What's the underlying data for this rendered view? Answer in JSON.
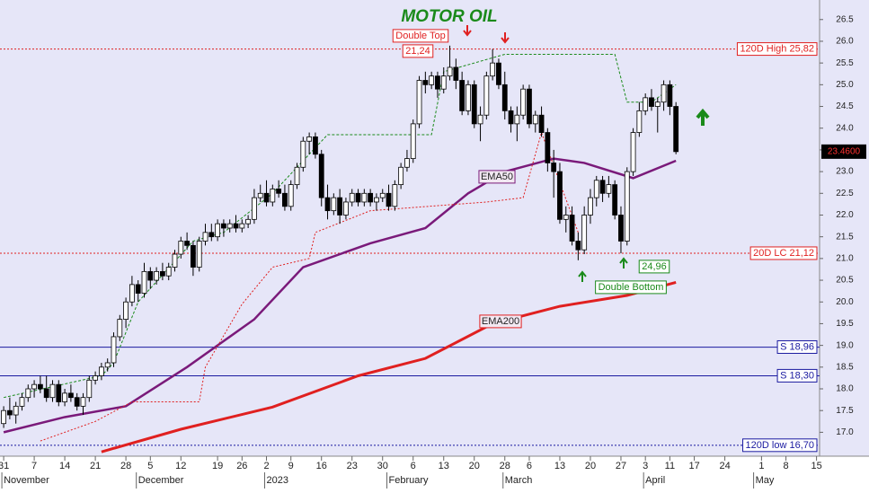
{
  "chart_data": {
    "type": "candlestick",
    "title": "MOTOR OIL",
    "xlim": [
      -0.6,
      133.5
    ],
    "ylim": [
      16.45,
      26.95
    ],
    "yticks": [
      {
        "value": 17,
        "label": "17.0"
      },
      17.5,
      {
        "value": 18,
        "label": "18.0"
      },
      18.5,
      {
        "value": 19,
        "label": "19.0"
      },
      19.5,
      {
        "value": 20,
        "label": "20.0"
      },
      20.5,
      {
        "value": 21,
        "label": "21.0"
      },
      21.5,
      {
        "value": 22,
        "label": "22.0"
      },
      22.5,
      {
        "value": 23,
        "label": "23.0"
      },
      23.5,
      {
        "value": 24,
        "label": "24.0"
      },
      24.5,
      {
        "value": 25,
        "label": "25.0"
      },
      25.5,
      {
        "value": 26,
        "label": "26.0"
      },
      26.5
    ],
    "xticks": [
      {
        "value": 0,
        "label": "31"
      },
      {
        "value": 5,
        "label": "7"
      },
      {
        "value": 10,
        "label": "14"
      },
      {
        "value": 15,
        "label": "21"
      },
      {
        "value": 20,
        "label": "28"
      },
      {
        "value": 24,
        "label": "5"
      },
      {
        "value": 29,
        "label": "12"
      },
      {
        "value": 35,
        "label": "19"
      },
      {
        "value": 39,
        "label": "26"
      },
      {
        "value": 43,
        "label": "2"
      },
      {
        "value": 47,
        "label": "9"
      },
      {
        "value": 52,
        "label": "16"
      },
      {
        "value": 57,
        "label": "23"
      },
      {
        "value": 62,
        "label": "30"
      },
      {
        "value": 67,
        "label": "6"
      },
      {
        "value": 72,
        "label": "13"
      },
      {
        "value": 77,
        "label": "20"
      },
      {
        "value": 82,
        "label": "28"
      },
      {
        "value": 86,
        "label": "6"
      },
      {
        "value": 91,
        "label": "13"
      },
      {
        "value": 96,
        "label": "20"
      },
      {
        "value": 101,
        "label": "27"
      },
      {
        "value": 105,
        "label": "3"
      },
      {
        "value": 109,
        "label": "11"
      },
      {
        "value": 113,
        "label": "17"
      },
      {
        "value": 118,
        "label": "24"
      },
      {
        "value": 124,
        "label": "1"
      },
      {
        "value": 128,
        "label": "8"
      },
      {
        "value": 133,
        "label": "15"
      }
    ],
    "months": [
      {
        "value": 0,
        "label": "November"
      },
      {
        "value": 22,
        "label": "December"
      },
      {
        "value": 43,
        "label": "2023"
      },
      {
        "value": 63,
        "label": "February"
      },
      {
        "value": 82,
        "label": "March"
      },
      {
        "value": 105,
        "label": "April"
      },
      {
        "value": 123,
        "label": "May"
      }
    ],
    "up_color": "#ffffff",
    "down_color": "#000000",
    "ohlc": [
      [
        17.2,
        17.6,
        17.1,
        17.5
      ],
      [
        17.5,
        17.8,
        17.3,
        17.4
      ],
      [
        17.4,
        17.7,
        17.2,
        17.6
      ],
      [
        17.6,
        17.9,
        17.5,
        17.8
      ],
      [
        17.8,
        18.1,
        17.7,
        18.0
      ],
      [
        18.0,
        18.2,
        17.8,
        18.1
      ],
      [
        18.1,
        18.3,
        17.9,
        18.0
      ],
      [
        18.0,
        18.3,
        17.7,
        17.8
      ],
      [
        17.8,
        18.2,
        17.7,
        18.1
      ],
      [
        18.1,
        18.2,
        17.6,
        17.7
      ],
      [
        17.7,
        18.0,
        17.6,
        17.9
      ],
      [
        17.9,
        18.1,
        17.7,
        17.8
      ],
      [
        17.8,
        17.9,
        17.5,
        17.6
      ],
      [
        17.6,
        17.9,
        17.4,
        17.8
      ],
      [
        17.8,
        18.3,
        17.7,
        18.2
      ],
      [
        18.2,
        18.4,
        18.1,
        18.3
      ],
      [
        18.3,
        18.6,
        18.2,
        18.5
      ],
      [
        18.5,
        18.7,
        18.4,
        18.6
      ],
      [
        18.6,
        19.3,
        18.5,
        19.2
      ],
      [
        19.2,
        19.7,
        19.1,
        19.6
      ],
      [
        19.6,
        20.1,
        19.4,
        20.0
      ],
      [
        20.0,
        20.6,
        19.9,
        20.4
      ],
      [
        20.4,
        20.5,
        20.0,
        20.2
      ],
      [
        20.2,
        20.9,
        20.1,
        20.7
      ],
      [
        20.7,
        20.8,
        20.3,
        20.5
      ],
      [
        20.5,
        20.8,
        20.4,
        20.7
      ],
      [
        20.7,
        20.9,
        20.5,
        20.6
      ],
      [
        20.6,
        20.9,
        20.5,
        20.8
      ],
      [
        20.8,
        21.2,
        20.7,
        21.1
      ],
      [
        21.1,
        21.5,
        21.0,
        21.4
      ],
      [
        21.4,
        21.6,
        21.2,
        21.3
      ],
      [
        21.3,
        21.4,
        20.6,
        20.8
      ],
      [
        20.8,
        21.5,
        20.7,
        21.4
      ],
      [
        21.4,
        21.8,
        21.3,
        21.6
      ],
      [
        21.6,
        21.8,
        21.4,
        21.5
      ],
      [
        21.5,
        21.9,
        21.4,
        21.8
      ],
      [
        21.8,
        21.9,
        21.5,
        21.7
      ],
      [
        21.7,
        21.9,
        21.6,
        21.8
      ],
      [
        21.8,
        22.0,
        21.6,
        21.7
      ],
      [
        21.7,
        21.9,
        21.6,
        21.8
      ],
      [
        21.8,
        22.0,
        21.7,
        21.9
      ],
      [
        21.9,
        22.6,
        21.8,
        22.4
      ],
      [
        22.4,
        22.7,
        22.3,
        22.5
      ],
      [
        22.5,
        22.8,
        22.2,
        22.3
      ],
      [
        22.3,
        22.7,
        22.2,
        22.6
      ],
      [
        22.6,
        22.8,
        22.4,
        22.5
      ],
      [
        22.5,
        22.7,
        22.1,
        22.2
      ],
      [
        22.2,
        22.8,
        22.1,
        22.7
      ],
      [
        22.7,
        23.2,
        22.6,
        23.1
      ],
      [
        23.1,
        23.8,
        23.0,
        23.7
      ],
      [
        23.7,
        23.9,
        23.4,
        23.8
      ],
      [
        23.8,
        23.9,
        23.3,
        23.4
      ],
      [
        23.4,
        23.5,
        22.2,
        22.4
      ],
      [
        22.4,
        22.7,
        21.9,
        22.1
      ],
      [
        22.1,
        22.5,
        22.0,
        22.4
      ],
      [
        22.4,
        22.6,
        21.8,
        22.0
      ],
      [
        22.0,
        22.4,
        21.9,
        22.3
      ],
      [
        22.3,
        22.6,
        22.2,
        22.5
      ],
      [
        22.5,
        22.6,
        22.2,
        22.3
      ],
      [
        22.3,
        22.6,
        22.2,
        22.5
      ],
      [
        22.5,
        22.6,
        22.2,
        22.3
      ],
      [
        22.3,
        22.5,
        22.1,
        22.4
      ],
      [
        22.4,
        22.6,
        22.3,
        22.5
      ],
      [
        22.5,
        22.7,
        22.1,
        22.2
      ],
      [
        22.2,
        22.8,
        22.1,
        22.7
      ],
      [
        22.7,
        23.2,
        22.6,
        23.1
      ],
      [
        23.1,
        23.5,
        23.0,
        23.3
      ],
      [
        23.3,
        24.2,
        23.2,
        24.1
      ],
      [
        24.1,
        25.2,
        24.0,
        25.1
      ],
      [
        25.1,
        25.3,
        24.8,
        25.0
      ],
      [
        25.0,
        25.3,
        24.9,
        25.2
      ],
      [
        25.2,
        25.3,
        24.7,
        24.9
      ],
      [
        24.9,
        25.4,
        24.8,
        25.2
      ],
      [
        25.2,
        25.9,
        25.1,
        25.4
      ],
      [
        25.4,
        25.6,
        24.9,
        25.1
      ],
      [
        25.1,
        25.3,
        24.3,
        24.4
      ],
      [
        24.4,
        25.1,
        24.3,
        25.0
      ],
      [
        25.0,
        25.1,
        24.0,
        24.1
      ],
      [
        24.1,
        24.5,
        23.7,
        24.3
      ],
      [
        24.3,
        25.3,
        24.2,
        25.2
      ],
      [
        25.2,
        25.82,
        25.1,
        25.5
      ],
      [
        25.5,
        25.6,
        24.9,
        25.0
      ],
      [
        25.0,
        25.3,
        24.2,
        24.4
      ],
      [
        24.4,
        24.5,
        23.9,
        24.1
      ],
      [
        24.1,
        24.5,
        23.7,
        24.3
      ],
      [
        24.3,
        25.0,
        24.2,
        24.9
      ],
      [
        24.9,
        25.0,
        24.0,
        24.1
      ],
      [
        24.1,
        24.4,
        23.9,
        24.3
      ],
      [
        24.3,
        24.5,
        23.8,
        23.9
      ],
      [
        23.9,
        24.0,
        23.0,
        23.2
      ],
      [
        23.2,
        23.5,
        22.4,
        23.0
      ],
      [
        23.0,
        23.2,
        21.8,
        21.9
      ],
      [
        21.9,
        22.2,
        21.6,
        22.0
      ],
      [
        22.0,
        22.2,
        21.3,
        21.4
      ],
      [
        21.4,
        21.6,
        20.96,
        21.2
      ],
      [
        21.2,
        22.2,
        21.1,
        22.0
      ],
      [
        22.0,
        22.6,
        21.8,
        22.4
      ],
      [
        22.4,
        22.9,
        22.2,
        22.8
      ],
      [
        22.8,
        22.9,
        22.3,
        22.5
      ],
      [
        22.5,
        22.9,
        22.4,
        22.7
      ],
      [
        22.7,
        22.8,
        21.9,
        22.0
      ],
      [
        22.0,
        22.2,
        21.12,
        21.4
      ],
      [
        21.4,
        23.1,
        21.3,
        23.0
      ],
      [
        23.0,
        24.0,
        22.9,
        23.9
      ],
      [
        23.9,
        24.6,
        23.8,
        24.4
      ],
      [
        24.4,
        24.8,
        24.3,
        24.7
      ],
      [
        24.7,
        24.9,
        24.4,
        24.5
      ],
      [
        24.5,
        24.7,
        23.9,
        24.6
      ],
      [
        24.6,
        25.1,
        24.4,
        25.0
      ],
      [
        25.0,
        25.1,
        24.3,
        24.5
      ],
      [
        24.5,
        24.6,
        23.4,
        23.46
      ]
    ],
    "lines": [
      {
        "name": "EMA50",
        "color": "#7a1a7a",
        "width": 2.5,
        "dash": "none",
        "x": [
          0,
          10,
          20,
          30,
          41,
          49,
          60,
          69,
          76,
          82,
          90,
          95,
          103,
          110
        ],
        "values": [
          17.0,
          17.35,
          17.6,
          18.5,
          19.6,
          20.8,
          21.35,
          21.7,
          22.5,
          23.0,
          23.3,
          23.2,
          22.85,
          23.25
        ]
      },
      {
        "name": "EMA200",
        "color": "#e02020",
        "width": 3,
        "dash": "none",
        "x": [
          16,
          29,
          44,
          58,
          69,
          80,
          91,
          102,
          110
        ],
        "values": [
          16.55,
          17.07,
          17.58,
          18.3,
          18.7,
          19.5,
          19.9,
          20.15,
          20.45
        ]
      },
      {
        "color": "#e02020",
        "width": 1,
        "dash": "2,2",
        "x": [
          6,
          15,
          21,
          32,
          33,
          39,
          44,
          50,
          51,
          60,
          79,
          85,
          88,
          94
        ],
        "values": [
          16.8,
          17.25,
          17.7,
          17.7,
          18.5,
          19.95,
          20.8,
          21.0,
          21.6,
          22.1,
          22.3,
          22.4,
          23.9,
          21.6
        ]
      },
      {
        "color": "#1a8a1a",
        "width": 1,
        "dash": "3,2",
        "x": [
          0,
          16,
          18,
          22,
          31,
          36,
          44,
          53,
          70,
          72,
          82,
          100,
          102,
          106,
          110
        ],
        "values": [
          17.8,
          18.3,
          18.6,
          20.0,
          21.4,
          21.6,
          22.5,
          23.85,
          23.85,
          25.3,
          25.7,
          25.7,
          24.6,
          24.6,
          25.0
        ]
      }
    ],
    "levels": [
      {
        "value": 25.82,
        "label": "120D High 25,82",
        "color": "#e02020",
        "dash": "2,2"
      },
      {
        "value": 21.12,
        "label": "20D LC 21,12",
        "color": "#e02020",
        "dash": "2,2"
      },
      {
        "value": 18.96,
        "label": "S 18,96",
        "color": "#1a1aa0",
        "dash": "none"
      },
      {
        "value": 18.3,
        "label": "S 18,30",
        "color": "#1a1aa0",
        "dash": "none"
      },
      {
        "value": 16.7,
        "label": "120D low 16,70",
        "color": "#1a1aa0",
        "dash": "2,2"
      }
    ],
    "last_price": {
      "value": 23.46,
      "label": "23.4600"
    },
    "annotations": [
      "Double Top",
      "21,24",
      "Double Bottom",
      "24,96"
    ]
  }
}
